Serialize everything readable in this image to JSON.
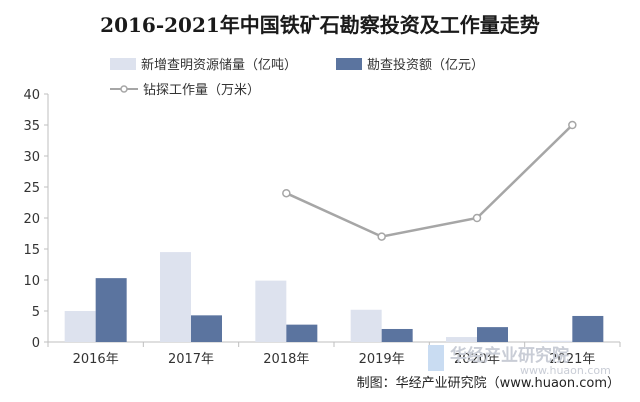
{
  "title": "2016-2021年中国铁矿石勘察投资及工作量走势",
  "source": "制图：华经产业研究院（www.huaon.com）",
  "watermark": {
    "name": "华经产业研究院",
    "url": "www.huaon.com"
  },
  "colors": {
    "series1": "#dde2ee",
    "series2": "#5b749f",
    "series3": "#a6a6a6"
  },
  "chart_data": {
    "type": "bar",
    "categories": [
      "2016年",
      "2017年",
      "2018年",
      "2019年",
      "2020年",
      "2021年"
    ],
    "series": [
      {
        "name": "新增查明资源储量（亿吨）",
        "type": "bar",
        "axis": "left",
        "values": [
          5.0,
          14.5,
          9.9,
          5.2,
          0.8,
          0.2
        ]
      },
      {
        "name": "勘查投资额（亿元）",
        "type": "bar",
        "axis": "left",
        "values": [
          10.3,
          4.3,
          2.8,
          2.1,
          2.4,
          4.2
        ]
      },
      {
        "name": "钻探工作量（万米）",
        "type": "line",
        "axis": "left",
        "values": [
          null,
          null,
          24,
          17,
          20,
          35
        ]
      }
    ],
    "y_ticks": [
      "0",
      "5",
      "10",
      "15",
      "20",
      "25",
      "30",
      "35",
      "40"
    ],
    "ylim": [
      0,
      40
    ],
    "xlabel": "",
    "ylabel": "",
    "grid": false,
    "legend": "top"
  }
}
